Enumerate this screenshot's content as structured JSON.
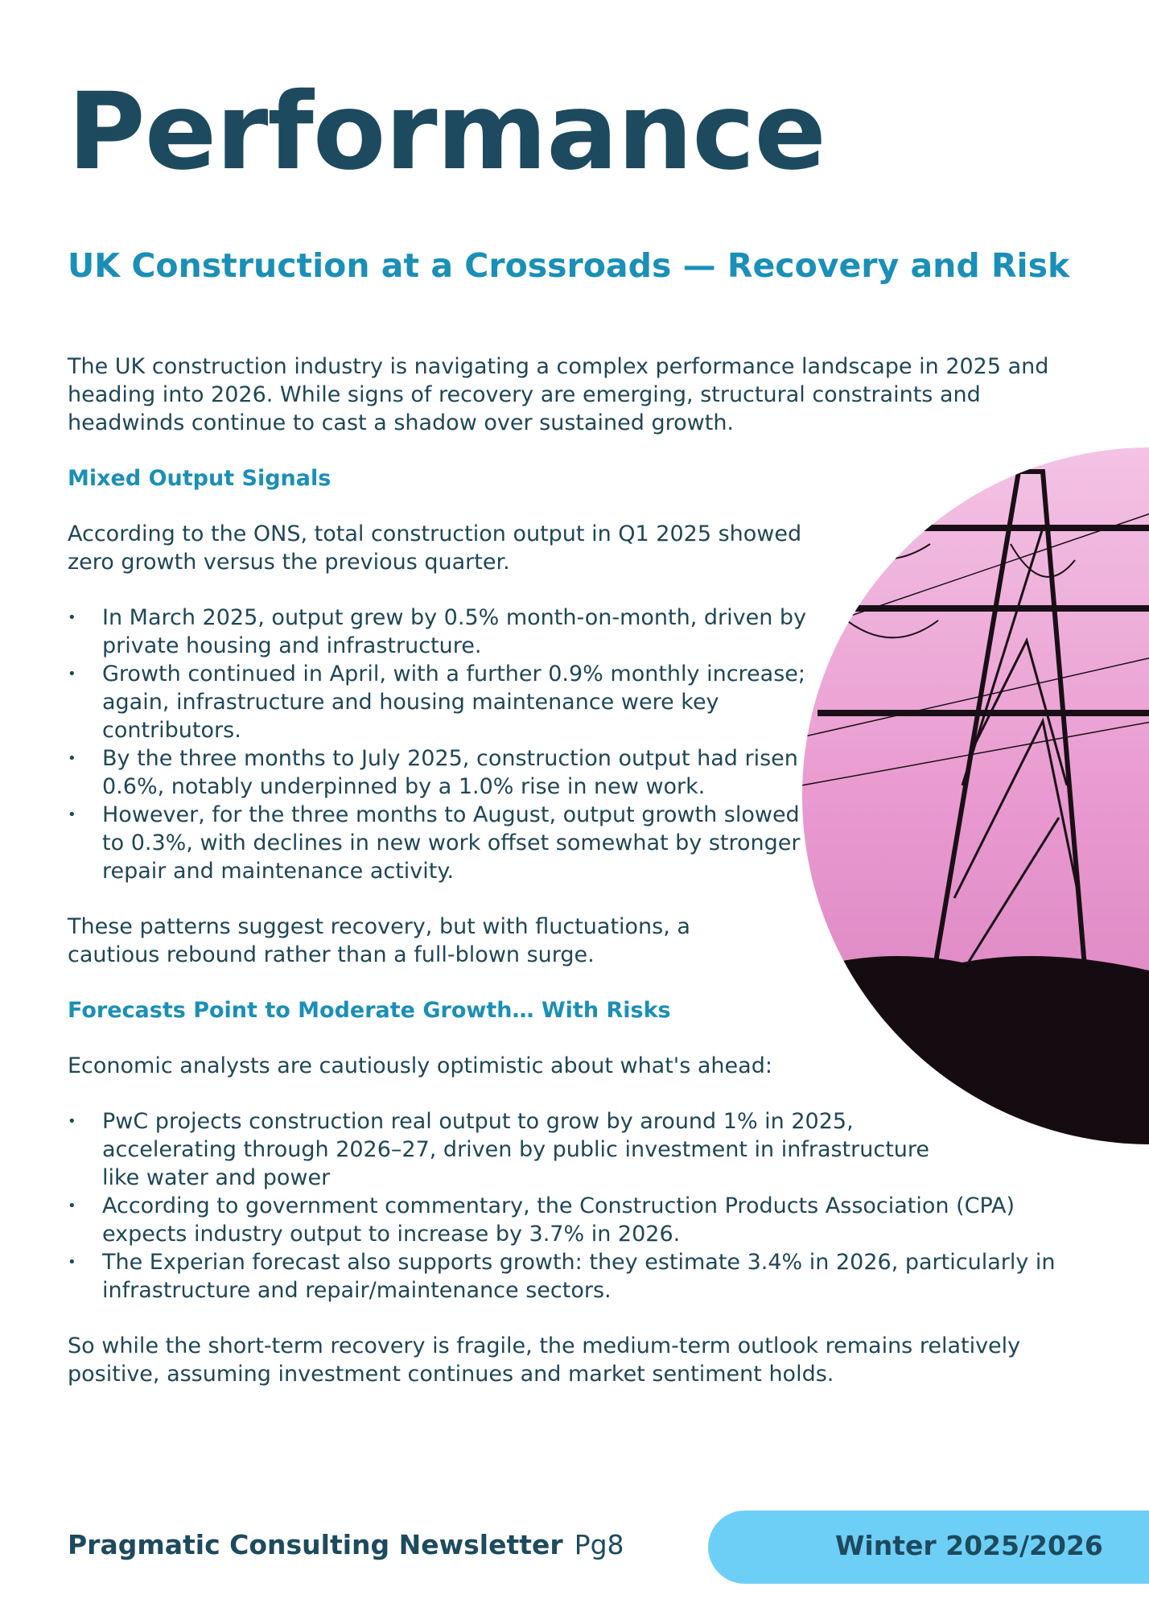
{
  "title": "Performance",
  "subtitle": "UK Construction at a Crossroads — Recovery and Risk",
  "intro": "The UK construction industry is navigating a complex performance landscape in 2025 and heading into 2026. While signs of recovery are emerging, structural constraints and headwinds continue to cast a shadow over sustained growth.",
  "section1": {
    "heading": "Mixed Output Signals",
    "lead": "According to the ONS, total construction output in Q1 2025 showed zero growth versus the previous quarter.",
    "bullets": [
      "In March 2025, output grew by 0.5% month-on-month, driven by private housing and infrastructure.",
      "Growth continued in April, with a further 0.9% monthly increase; again, infrastructure and housing maintenance were key contributors.",
      "By the three months to July 2025, construction output had risen 0.6%, notably underpinned by a 1.0% rise in new work.",
      "However, for the three months to August, output growth slowed to 0.3%, with declines in new work offset somewhat by stronger repair and maintenance activity."
    ],
    "closing": "These patterns suggest recovery, but with fluctuations, a cautious rebound rather than a full-blown surge."
  },
  "section2": {
    "heading": "Forecasts Point to Moderate Growth… With Risks",
    "lead": "Economic analysts are cautiously optimistic about what's ahead:",
    "bullets": [
      "PwC projects construction real output to grow by around 1% in 2025, accelerating through 2026–27, driven by public investment in infrastructure like water and power",
      "According to government commentary, the Construction Products Association (CPA) expects industry output to increase by 3.7% in 2026.",
      "The Experian forecast also supports growth: they estimate 3.4% in 2026, particularly in infrastructure and repair/maintenance sectors."
    ],
    "closing": "So while the short-term recovery is fragile, the medium-term outlook remains relatively positive, assuming investment continues and market sentiment holds."
  },
  "footer": {
    "publication": "Pragmatic Consulting Newsletter",
    "page": "Pg8",
    "edition": "Winter 2025/2026"
  },
  "colors": {
    "title": "#1d4a5e",
    "accent": "#1a8fb8",
    "pill": "#6ecff6"
  }
}
